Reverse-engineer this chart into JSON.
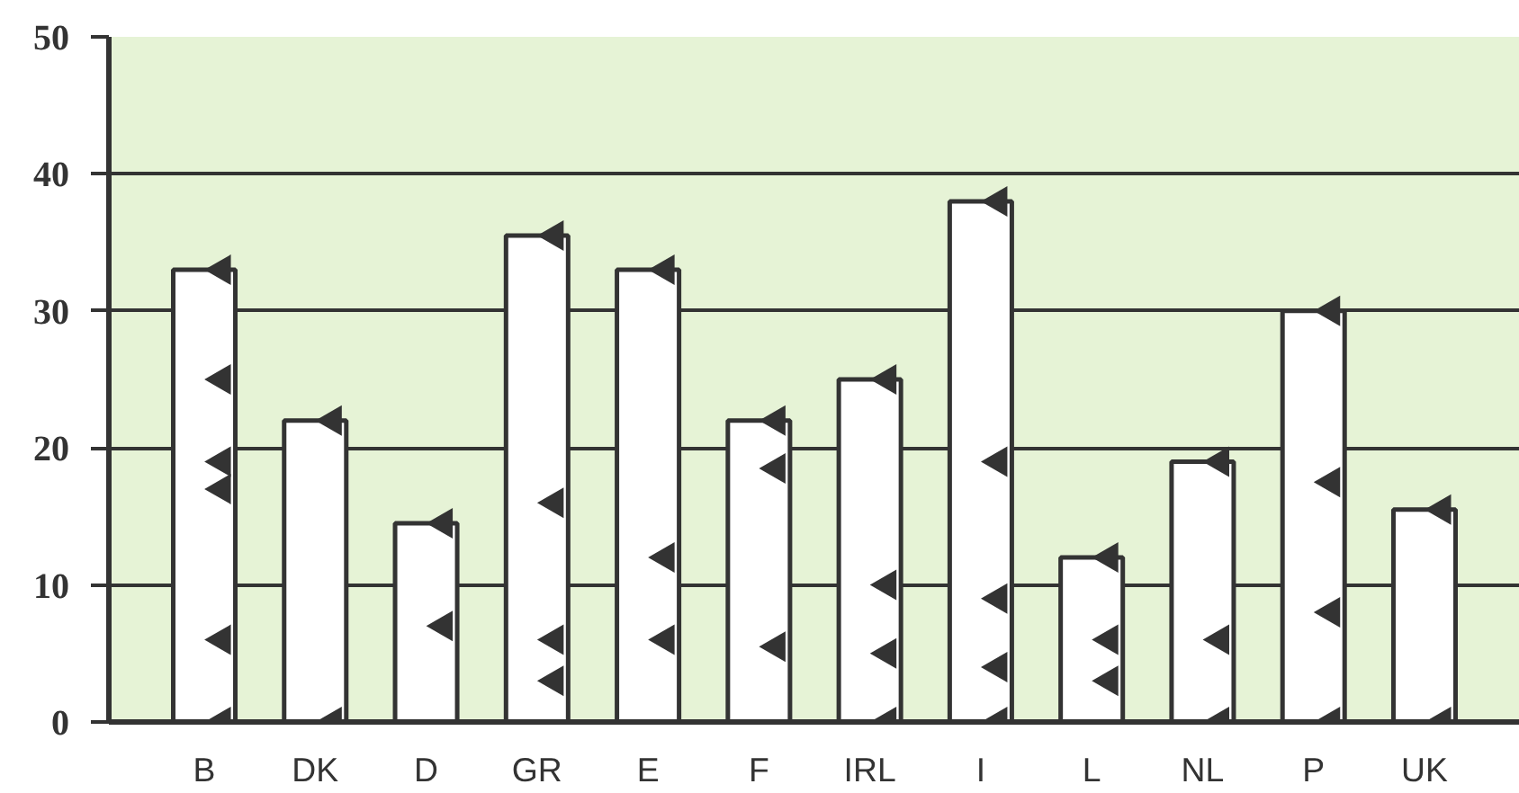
{
  "chart_data": {
    "type": "bar",
    "categories": [
      "B",
      "DK",
      "D",
      "GR",
      "E",
      "F",
      "IRL",
      "I",
      "L",
      "NL",
      "P",
      "UK"
    ],
    "series": [
      {
        "color": "#ffffff",
        "values": [
          33,
          22,
          14.5,
          35.5,
          33,
          22,
          25,
          38,
          12,
          19,
          30,
          15.5
        ]
      },
      {
        "type": "scatter",
        "color": "#333333",
        "marker": "triangle",
        "x": [
          "B",
          "B",
          "B",
          "B",
          "B",
          "B",
          "DK",
          "DK",
          "D",
          "D",
          "GR",
          "GR",
          "GR",
          "GR",
          "E",
          "E",
          "E",
          "F",
          "F",
          "F",
          "IRL",
          "IRL",
          "IRL",
          "IRL",
          "I",
          "I",
          "I",
          "I",
          "I",
          "L",
          "L",
          "L",
          "NL",
          "NL",
          "NL",
          "P",
          "P",
          "P",
          "P",
          "UK",
          "UK"
        ],
        "values": [
          33,
          25,
          19,
          17,
          6,
          0,
          22,
          0,
          14.5,
          7,
          35.5,
          16,
          6,
          3,
          33,
          12,
          6,
          22,
          18.5,
          5.5,
          25,
          10,
          5,
          0,
          38,
          19,
          9,
          4,
          0,
          12,
          6,
          3,
          19,
          6,
          0,
          30,
          17.5,
          8,
          0,
          15.5,
          0
        ]
      }
    ],
    "ylim": [
      0,
      50
    ],
    "yticks": [
      0,
      10,
      20,
      30,
      40,
      50
    ],
    "grid": "y"
  }
}
